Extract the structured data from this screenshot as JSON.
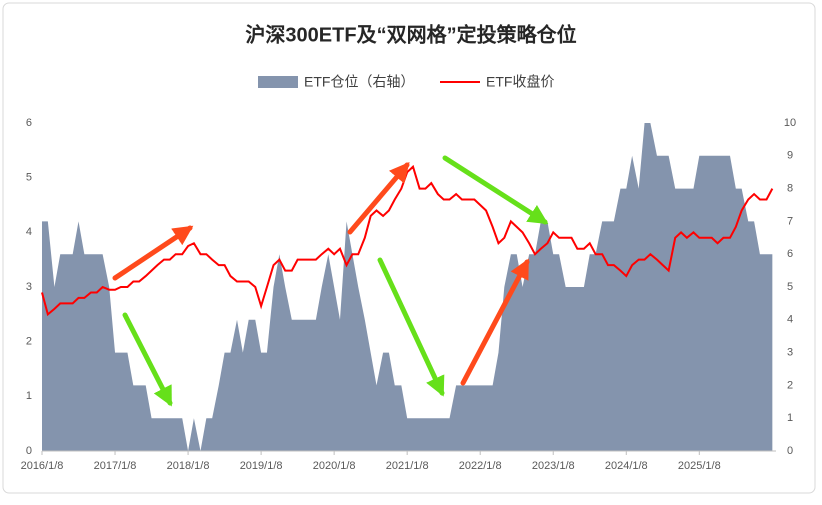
{
  "chart_data": {
    "type": "area-line",
    "title": "沪深300ETF及“双网格”定投策略仓位",
    "x": [
      2016,
      2016.08,
      2016.17,
      2016.25,
      2016.33,
      2016.42,
      2016.5,
      2016.58,
      2016.67,
      2016.75,
      2016.83,
      2016.92,
      2017,
      2017.08,
      2017.17,
      2017.25,
      2017.33,
      2017.42,
      2017.5,
      2017.58,
      2017.67,
      2017.75,
      2017.83,
      2017.92,
      2018,
      2018.08,
      2018.17,
      2018.25,
      2018.33,
      2018.42,
      2018.5,
      2018.58,
      2018.67,
      2018.75,
      2018.83,
      2018.92,
      2019,
      2019.08,
      2019.17,
      2019.25,
      2019.33,
      2019.42,
      2019.5,
      2019.58,
      2019.67,
      2019.75,
      2019.83,
      2019.92,
      2020,
      2020.08,
      2020.17,
      2020.25,
      2020.33,
      2020.42,
      2020.5,
      2020.58,
      2020.67,
      2020.75,
      2020.83,
      2020.92,
      2021,
      2021.08,
      2021.17,
      2021.25,
      2021.33,
      2021.42,
      2021.5,
      2021.58,
      2021.67,
      2021.75,
      2021.83,
      2021.92,
      2022,
      2022.08,
      2022.17,
      2022.25,
      2022.33,
      2022.42,
      2022.5,
      2022.58,
      2022.67,
      2022.75,
      2022.83,
      2022.92,
      2023,
      2023.08,
      2023.17,
      2023.25,
      2023.33,
      2023.42,
      2023.5,
      2023.58,
      2023.67,
      2023.75,
      2023.83,
      2023.92,
      2024,
      2024.08,
      2024.17,
      2024.25,
      2024.33,
      2024.42,
      2024.5,
      2024.58,
      2024.67,
      2024.75,
      2024.83,
      2024.92,
      2025,
      2025.08,
      2025.17,
      2025.25,
      2025.33,
      2025.42,
      2025.5,
      2025.58,
      2025.67,
      2025.75,
      2025.83,
      2025.92,
      2026
    ],
    "series": [
      {
        "name": "ETF仓位（右轴）",
        "kind": "area",
        "axis": "y2",
        "color": "#8494ad",
        "values": [
          7,
          7,
          5,
          6,
          6,
          6,
          7,
          6,
          6,
          6,
          6,
          5,
          3,
          3,
          3,
          2,
          2,
          2,
          1,
          1,
          1,
          1,
          1,
          1,
          0,
          1,
          0,
          1,
          1,
          2,
          3,
          3,
          4,
          3,
          4,
          4,
          3,
          3,
          5,
          6,
          5,
          4,
          4,
          4,
          4,
          4,
          5,
          6,
          5,
          4,
          7,
          6,
          5,
          4,
          3,
          2,
          3,
          3,
          2,
          2,
          1,
          1,
          1,
          1,
          1,
          1,
          1,
          1,
          2,
          2,
          2,
          2,
          2,
          2,
          2,
          3,
          5,
          6,
          6,
          5,
          6,
          6,
          7,
          7,
          6,
          6,
          5,
          5,
          5,
          5,
          6,
          6,
          7,
          7,
          7,
          8,
          8,
          9,
          8,
          10,
          10,
          9,
          9,
          9,
          8,
          8,
          8,
          8,
          9,
          9,
          9,
          9,
          9,
          9,
          8,
          8,
          7,
          7,
          6,
          6,
          6
        ]
      },
      {
        "name": "ETF收盘价",
        "kind": "line",
        "color": "#ff0000",
        "values": [
          2.9,
          2.5,
          2.6,
          2.7,
          2.7,
          2.7,
          2.8,
          2.8,
          2.9,
          2.9,
          3.0,
          2.95,
          2.95,
          3.0,
          3.0,
          3.1,
          3.1,
          3.2,
          3.3,
          3.4,
          3.5,
          3.5,
          3.6,
          3.6,
          3.75,
          3.8,
          3.6,
          3.6,
          3.5,
          3.4,
          3.4,
          3.2,
          3.1,
          3.1,
          3.1,
          3.0,
          2.65,
          3.0,
          3.4,
          3.5,
          3.3,
          3.3,
          3.5,
          3.5,
          3.5,
          3.5,
          3.6,
          3.7,
          3.6,
          3.7,
          3.4,
          3.6,
          3.6,
          3.9,
          4.3,
          4.4,
          4.3,
          4.4,
          4.6,
          4.8,
          5.1,
          5.2,
          4.8,
          4.8,
          4.9,
          4.7,
          4.6,
          4.6,
          4.7,
          4.6,
          4.6,
          4.6,
          4.5,
          4.4,
          4.1,
          3.8,
          3.9,
          4.2,
          4.1,
          4.0,
          3.8,
          3.6,
          3.7,
          3.8,
          4.0,
          3.9,
          3.9,
          3.9,
          3.7,
          3.7,
          3.8,
          3.6,
          3.6,
          3.4,
          3.4,
          3.3,
          3.2,
          3.4,
          3.5,
          3.5,
          3.6,
          3.5,
          3.4,
          3.3,
          3.9,
          4.0,
          3.9,
          4.0,
          3.9,
          3.9,
          3.9,
          3.8,
          3.9,
          3.9,
          4.1,
          4.4,
          4.6,
          4.7,
          4.6,
          4.6,
          4.8
        ]
      }
    ],
    "xlim": [
      2016,
      2026.05
    ],
    "xticks": [
      {
        "value": 2016,
        "label": "2016/1/8"
      },
      {
        "value": 2017,
        "label": "2017/1/8"
      },
      {
        "value": 2018,
        "label": "2018/1/8"
      },
      {
        "value": 2019,
        "label": "2019/1/8"
      },
      {
        "value": 2020,
        "label": "2020/1/8"
      },
      {
        "value": 2021,
        "label": "2021/1/8"
      },
      {
        "value": 2022,
        "label": "2022/1/8"
      },
      {
        "value": 2023,
        "label": "2023/1/8"
      },
      {
        "value": 2024,
        "label": "2024/1/8"
      },
      {
        "value": 2025,
        "label": "2025/1/8"
      }
    ],
    "ylim": [
      0,
      6
    ],
    "yticks": [
      0,
      1,
      2,
      3,
      4,
      5,
      6
    ],
    "y2lim": [
      0,
      10
    ],
    "y2ticks": [
      0,
      1,
      2,
      3,
      4,
      5,
      6,
      7,
      8,
      9,
      10
    ],
    "legend": "top"
  }
}
